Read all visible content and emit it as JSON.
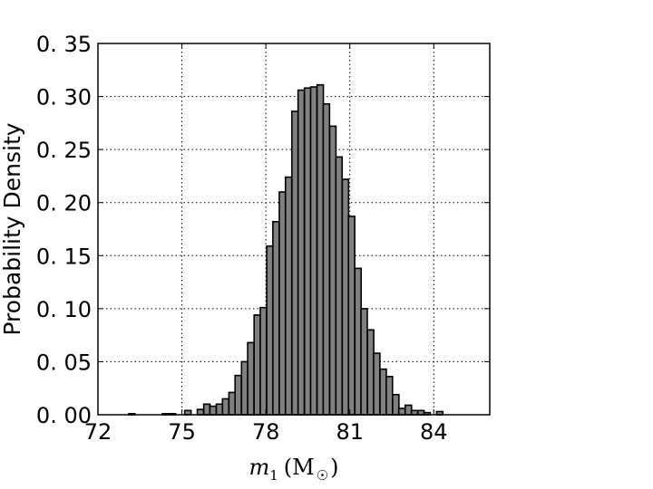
{
  "chart_data": {
    "type": "bar",
    "xlabel_parts": {
      "symbol": "m",
      "subscript": "1",
      "unit": "M",
      "unit_subscript": "☉"
    },
    "ylabel": "Probability Density",
    "xlim": [
      72,
      86
    ],
    "ylim": [
      0,
      0.35
    ],
    "xticks": [
      72,
      75,
      78,
      81,
      84
    ],
    "xtick_labels": [
      "72",
      "75",
      "78",
      "81",
      "84"
    ],
    "yticks": [
      0,
      0.05,
      0.1,
      0.15,
      0.2,
      0.25,
      0.3,
      0.35
    ],
    "ytick_labels": [
      "0. 00",
      "0. 05",
      "0. 10",
      "0. 15",
      "0. 20",
      "0. 25",
      "0. 30",
      "0. 35"
    ],
    "grid": true,
    "bin_width": 0.225,
    "bins": [
      {
        "x0": 73.1,
        "v": 0.001
      },
      {
        "x0": 74.3,
        "v": 0.001
      },
      {
        "x0": 74.55,
        "v": 0.001
      },
      {
        "x0": 75.1,
        "v": 0.004
      },
      {
        "x0": 75.55,
        "v": 0.005
      },
      {
        "x0": 75.78,
        "v": 0.01
      },
      {
        "x0": 76.0,
        "v": 0.008
      },
      {
        "x0": 76.23,
        "v": 0.01
      },
      {
        "x0": 76.45,
        "v": 0.015
      },
      {
        "x0": 76.68,
        "v": 0.021
      },
      {
        "x0": 76.9,
        "v": 0.037
      },
      {
        "x0": 77.13,
        "v": 0.05
      },
      {
        "x0": 77.35,
        "v": 0.068
      },
      {
        "x0": 77.58,
        "v": 0.094
      },
      {
        "x0": 77.8,
        "v": 0.101
      },
      {
        "x0": 78.03,
        "v": 0.159
      },
      {
        "x0": 78.25,
        "v": 0.182
      },
      {
        "x0": 78.48,
        "v": 0.21
      },
      {
        "x0": 78.7,
        "v": 0.224
      },
      {
        "x0": 78.93,
        "v": 0.286
      },
      {
        "x0": 79.15,
        "v": 0.306
      },
      {
        "x0": 79.38,
        "v": 0.308
      },
      {
        "x0": 79.6,
        "v": 0.309
      },
      {
        "x0": 79.83,
        "v": 0.311
      },
      {
        "x0": 80.05,
        "v": 0.293
      },
      {
        "x0": 80.28,
        "v": 0.272
      },
      {
        "x0": 80.5,
        "v": 0.243
      },
      {
        "x0": 80.73,
        "v": 0.222
      },
      {
        "x0": 80.95,
        "v": 0.187
      },
      {
        "x0": 81.18,
        "v": 0.138
      },
      {
        "x0": 81.4,
        "v": 0.1
      },
      {
        "x0": 81.63,
        "v": 0.08
      },
      {
        "x0": 81.85,
        "v": 0.058
      },
      {
        "x0": 82.08,
        "v": 0.043
      },
      {
        "x0": 82.3,
        "v": 0.036
      },
      {
        "x0": 82.53,
        "v": 0.019
      },
      {
        "x0": 82.75,
        "v": 0.006
      },
      {
        "x0": 82.98,
        "v": 0.009
      },
      {
        "x0": 83.2,
        "v": 0.004
      },
      {
        "x0": 83.43,
        "v": 0.004
      },
      {
        "x0": 83.65,
        "v": 0.002
      },
      {
        "x0": 84.1,
        "v": 0.003
      }
    ]
  }
}
